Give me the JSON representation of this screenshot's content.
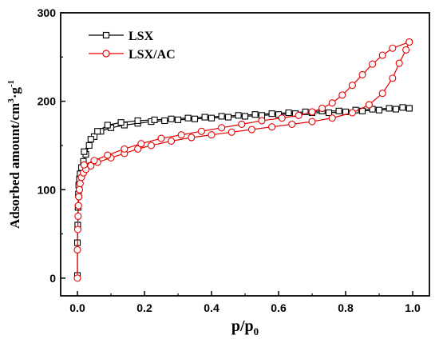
{
  "chart_data": {
    "type": "scatter",
    "xlabel": "p/p",
    "xlabel_sub": "0",
    "ylabel": "Adsorbed amount/cm",
    "ylabel_sup": "3",
    "ylabel_mid": "·g",
    "ylabel_sup2": "-1",
    "xlim": [
      -0.05,
      1.05
    ],
    "ylim": [
      -20,
      300
    ],
    "xticks": [
      0.0,
      0.2,
      0.4,
      0.6,
      0.8,
      1.0
    ],
    "xtick_labels": [
      "0.0",
      "0.2",
      "0.4",
      "0.6",
      "0.8",
      "1.0"
    ],
    "yticks": [
      0,
      100,
      200,
      300
    ],
    "ytick_labels": [
      "0",
      "100",
      "200",
      "300"
    ],
    "legend_position": "top-left",
    "series": [
      {
        "name": "LSX",
        "color": "#000000",
        "marker": "square",
        "adsorption": [
          [
            0.0,
            3
          ],
          [
            0.0,
            40
          ],
          [
            0.001,
            60
          ],
          [
            0.002,
            80
          ],
          [
            0.003,
            95
          ],
          [
            0.004,
            105
          ],
          [
            0.006,
            112
          ],
          [
            0.008,
            118
          ],
          [
            0.012,
            125
          ],
          [
            0.018,
            132
          ],
          [
            0.025,
            140
          ],
          [
            0.035,
            150
          ],
          [
            0.05,
            160
          ],
          [
            0.07,
            166
          ],
          [
            0.1,
            170
          ],
          [
            0.14,
            173
          ],
          [
            0.18,
            175
          ],
          [
            0.22,
            177
          ],
          [
            0.26,
            178
          ],
          [
            0.3,
            179
          ],
          [
            0.35,
            180
          ],
          [
            0.4,
            181
          ],
          [
            0.45,
            182
          ],
          [
            0.5,
            183
          ],
          [
            0.55,
            184
          ],
          [
            0.6,
            185
          ],
          [
            0.65,
            186
          ],
          [
            0.7,
            187
          ],
          [
            0.75,
            187
          ],
          [
            0.8,
            188
          ],
          [
            0.85,
            189
          ],
          [
            0.9,
            190
          ],
          [
            0.95,
            191
          ],
          [
            0.99,
            192
          ]
        ],
        "desorption": [
          [
            0.99,
            192
          ],
          [
            0.97,
            193
          ],
          [
            0.93,
            192
          ],
          [
            0.88,
            191
          ],
          [
            0.83,
            190
          ],
          [
            0.78,
            189
          ],
          [
            0.73,
            189
          ],
          [
            0.68,
            188
          ],
          [
            0.63,
            187
          ],
          [
            0.58,
            186
          ],
          [
            0.53,
            185
          ],
          [
            0.48,
            184
          ],
          [
            0.43,
            183
          ],
          [
            0.38,
            182
          ],
          [
            0.33,
            181
          ],
          [
            0.28,
            180
          ],
          [
            0.23,
            179
          ],
          [
            0.18,
            178
          ],
          [
            0.13,
            176
          ],
          [
            0.09,
            173
          ],
          [
            0.06,
            166
          ],
          [
            0.04,
            157
          ],
          [
            0.02,
            143
          ]
        ]
      },
      {
        "name": "LSX/AC",
        "color": "#e60000",
        "marker": "circle",
        "adsorption": [
          [
            0.0,
            0
          ],
          [
            0.0,
            32
          ],
          [
            0.001,
            55
          ],
          [
            0.002,
            70
          ],
          [
            0.003,
            82
          ],
          [
            0.004,
            92
          ],
          [
            0.006,
            100
          ],
          [
            0.008,
            107
          ],
          [
            0.012,
            114
          ],
          [
            0.018,
            119
          ],
          [
            0.025,
            123
          ],
          [
            0.04,
            127
          ],
          [
            0.06,
            131
          ],
          [
            0.1,
            136
          ],
          [
            0.14,
            141
          ],
          [
            0.18,
            146
          ],
          [
            0.22,
            150
          ],
          [
            0.28,
            155
          ],
          [
            0.34,
            159
          ],
          [
            0.4,
            162
          ],
          [
            0.46,
            165
          ],
          [
            0.52,
            168
          ],
          [
            0.58,
            171
          ],
          [
            0.64,
            174
          ],
          [
            0.7,
            177
          ],
          [
            0.76,
            181
          ],
          [
            0.82,
            187
          ],
          [
            0.87,
            196
          ],
          [
            0.91,
            209
          ],
          [
            0.94,
            226
          ],
          [
            0.96,
            243
          ],
          [
            0.98,
            258
          ],
          [
            0.99,
            267
          ]
        ],
        "desorption": [
          [
            0.99,
            267
          ],
          [
            0.94,
            260
          ],
          [
            0.91,
            252
          ],
          [
            0.88,
            242
          ],
          [
            0.85,
            230
          ],
          [
            0.82,
            218
          ],
          [
            0.79,
            207
          ],
          [
            0.76,
            198
          ],
          [
            0.73,
            192
          ],
          [
            0.7,
            188
          ],
          [
            0.66,
            184
          ],
          [
            0.61,
            181
          ],
          [
            0.55,
            178
          ],
          [
            0.49,
            174
          ],
          [
            0.43,
            170
          ],
          [
            0.37,
            166
          ],
          [
            0.31,
            162
          ],
          [
            0.25,
            158
          ],
          [
            0.19,
            152
          ],
          [
            0.14,
            146
          ],
          [
            0.09,
            139
          ],
          [
            0.05,
            133
          ],
          [
            0.02,
            128
          ]
        ]
      }
    ]
  }
}
